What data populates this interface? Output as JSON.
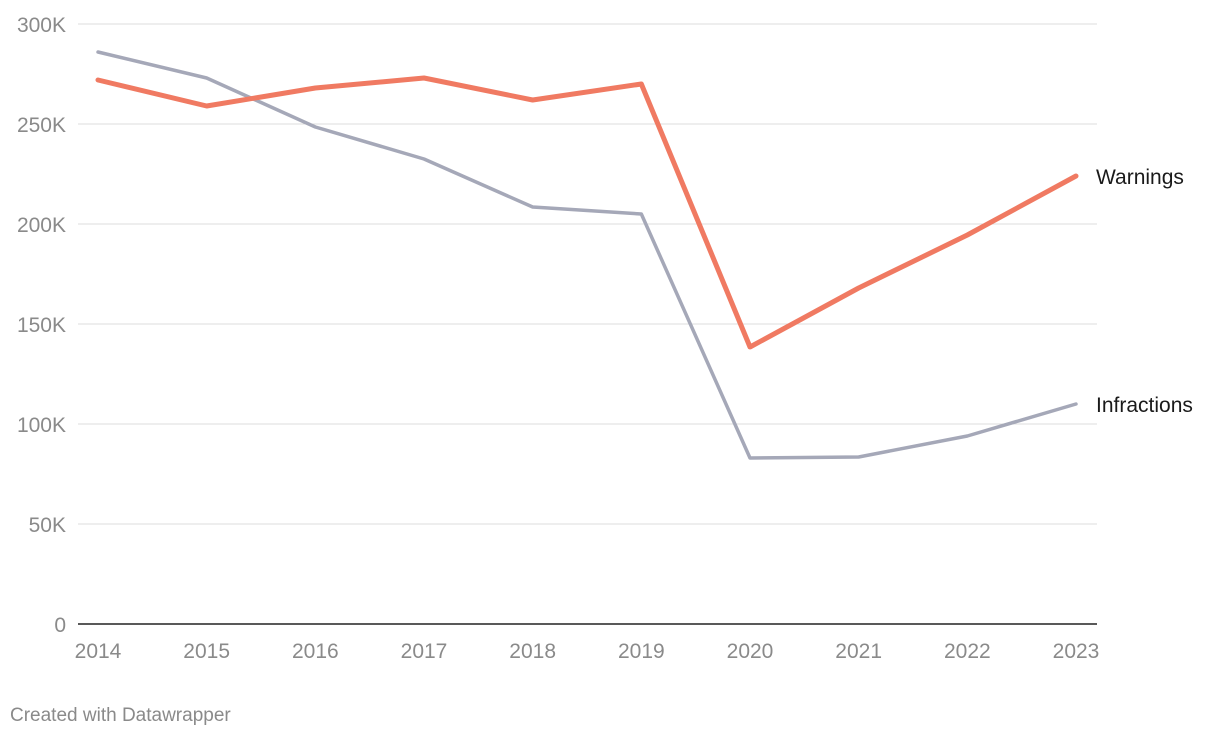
{
  "credit": "Created with Datawrapper",
  "chart_data": {
    "type": "line",
    "title": "",
    "xlabel": "",
    "ylabel": "",
    "x": [
      "2014",
      "2015",
      "2016",
      "2017",
      "2018",
      "2019",
      "2020",
      "2021",
      "2022",
      "2023"
    ],
    "ylim": [
      0,
      300000
    ],
    "yticks": [
      0,
      50000,
      100000,
      150000,
      200000,
      250000,
      300000
    ],
    "ytick_labels": [
      "0",
      "50K",
      "100K",
      "150K",
      "200K",
      "250K",
      "300K"
    ],
    "grid": true,
    "series": [
      {
        "name": "Warnings",
        "color": "#f07a62",
        "values": [
          272000,
          259000,
          268000,
          273000,
          262000,
          270000,
          138500,
          168000,
          194500,
          224000
        ]
      },
      {
        "name": "Infractions",
        "color": "#a5a8b8",
        "values": [
          286000,
          273000,
          248500,
          232500,
          208500,
          205000,
          83000,
          83500,
          94000,
          110000
        ]
      }
    ]
  }
}
